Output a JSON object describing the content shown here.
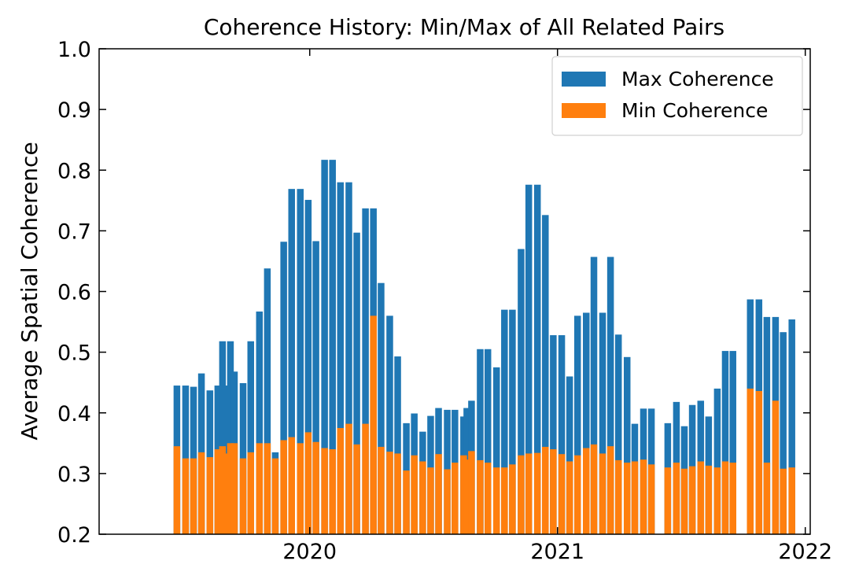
{
  "chart_data": {
    "type": "bar",
    "title": "Coherence History: Min/Max of All Related Pairs",
    "ylabel": "Average Spatial Coherence",
    "x": [
      2019.464,
      2019.499,
      2019.531,
      2019.563,
      2019.597,
      2019.629,
      2019.648,
      2019.664,
      2019.68,
      2019.696,
      2019.731,
      2019.762,
      2019.797,
      2019.829,
      2019.861,
      2019.895,
      2019.927,
      2019.962,
      2019.994,
      2020.025,
      2020.06,
      2020.092,
      2020.124,
      2020.158,
      2020.19,
      2020.225,
      2020.257,
      2020.288,
      2020.323,
      2020.355,
      2020.39,
      2020.422,
      2020.456,
      2020.488,
      2020.52,
      2020.555,
      2020.586,
      2020.621,
      2020.634,
      2020.653,
      2020.688,
      2020.719,
      2020.754,
      2020.786,
      2020.818,
      2020.853,
      2020.884,
      2020.919,
      2020.951,
      2020.983,
      2021.017,
      2021.049,
      2021.081,
      2021.116,
      2021.147,
      2021.182,
      2021.214,
      2021.246,
      2021.281,
      2021.312,
      2021.347,
      2021.379,
      2021.445,
      2021.48,
      2021.512,
      2021.544,
      2021.578,
      2021.61,
      2021.645,
      2021.677,
      2021.708,
      2021.778,
      2021.813,
      2021.845,
      2021.88,
      2021.911,
      2021.946
    ],
    "series": [
      {
        "name": "Max Coherence",
        "color": "#1f77b4",
        "values": [
          0.445,
          0.445,
          0.443,
          0.465,
          0.437,
          0.445,
          0.518,
          0.445,
          0.518,
          0.468,
          0.449,
          0.518,
          0.567,
          0.638,
          0.335,
          0.682,
          0.769,
          0.769,
          0.751,
          0.683,
          0.817,
          0.817,
          0.78,
          0.78,
          0.697,
          0.737,
          0.737,
          0.614,
          0.56,
          0.493,
          0.383,
          0.399,
          0.369,
          0.395,
          0.408,
          0.405,
          0.405,
          0.394,
          0.408,
          0.42,
          0.505,
          0.505,
          0.475,
          0.57,
          0.57,
          0.67,
          0.776,
          0.776,
          0.726,
          0.528,
          0.528,
          0.46,
          0.56,
          0.565,
          0.657,
          0.565,
          0.657,
          0.529,
          0.492,
          0.382,
          0.407,
          0.407,
          0.383,
          0.418,
          0.378,
          0.413,
          0.42,
          0.394,
          0.44,
          0.502,
          0.502,
          0.587,
          0.587,
          0.558,
          0.558,
          0.533,
          0.554
        ]
      },
      {
        "name": "Min Coherence",
        "color": "#ff7f0e",
        "values": [
          0.345,
          0.325,
          0.325,
          0.335,
          0.327,
          0.34,
          0.345,
          0.333,
          0.35,
          0.35,
          0.325,
          0.335,
          0.35,
          0.35,
          0.325,
          0.355,
          0.36,
          0.35,
          0.368,
          0.352,
          0.342,
          0.34,
          0.375,
          0.382,
          0.348,
          0.382,
          0.56,
          0.344,
          0.336,
          0.333,
          0.305,
          0.33,
          0.32,
          0.31,
          0.332,
          0.307,
          0.318,
          0.33,
          0.323,
          0.337,
          0.322,
          0.318,
          0.31,
          0.31,
          0.315,
          0.33,
          0.333,
          0.334,
          0.344,
          0.34,
          0.332,
          0.32,
          0.33,
          0.342,
          0.348,
          0.333,
          0.345,
          0.322,
          0.318,
          0.32,
          0.323,
          0.315,
          0.31,
          0.318,
          0.308,
          0.312,
          0.32,
          0.313,
          0.31,
          0.32,
          0.318,
          0.44,
          0.436,
          0.318,
          0.42,
          0.308,
          0.31
        ]
      }
    ],
    "xlim": [
      2019.15,
      2022.02
    ],
    "xticks": [
      2020,
      2021,
      2022
    ],
    "ylim": [
      0.2,
      1
    ],
    "yticks": [
      0.2,
      0.3,
      0.4,
      0.5,
      0.6,
      0.7,
      0.8,
      0.9,
      {
        "value": 1,
        "label": "1.0"
      }
    ],
    "legend": "upper right"
  }
}
